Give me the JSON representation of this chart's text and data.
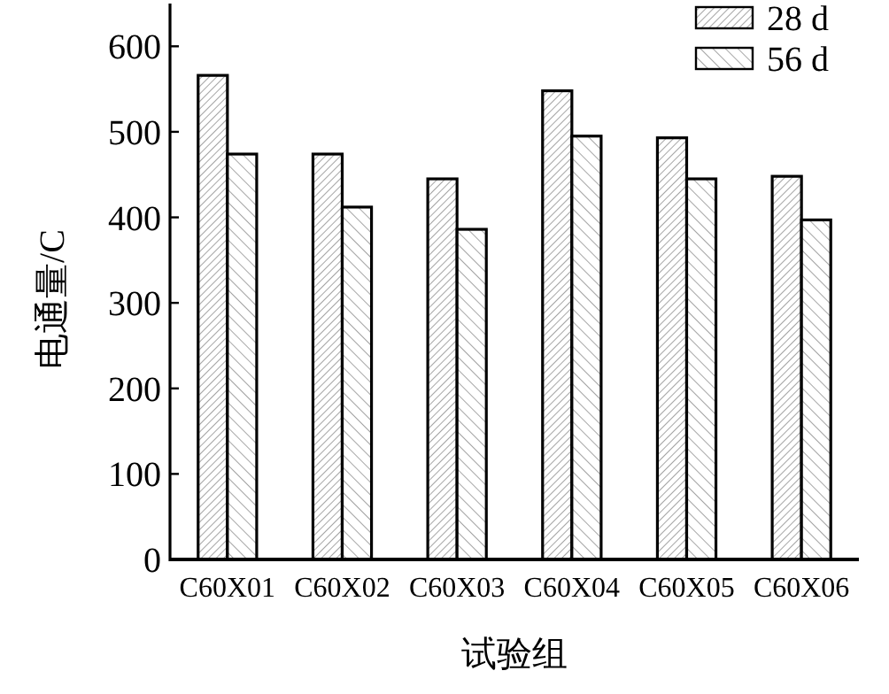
{
  "chart_data": {
    "type": "bar",
    "xlabel": "试验组",
    "ylabel": "电通量/C",
    "categories": [
      "C60X01",
      "C60X02",
      "C60X03",
      "C60X04",
      "C60X05",
      "C60X06"
    ],
    "series": [
      {
        "name": "28 d",
        "color": "#000000",
        "values": [
          566,
          474,
          445,
          548,
          493,
          448
        ]
      },
      {
        "name": "56 d",
        "color": "#000000",
        "values": [
          474,
          412,
          386,
          495,
          445,
          397
        ]
      }
    ],
    "ylim": [
      0,
      650
    ],
    "yticks": [
      0,
      100,
      200,
      300,
      400,
      500,
      600
    ],
    "grid": false,
    "legend": "top right"
  }
}
